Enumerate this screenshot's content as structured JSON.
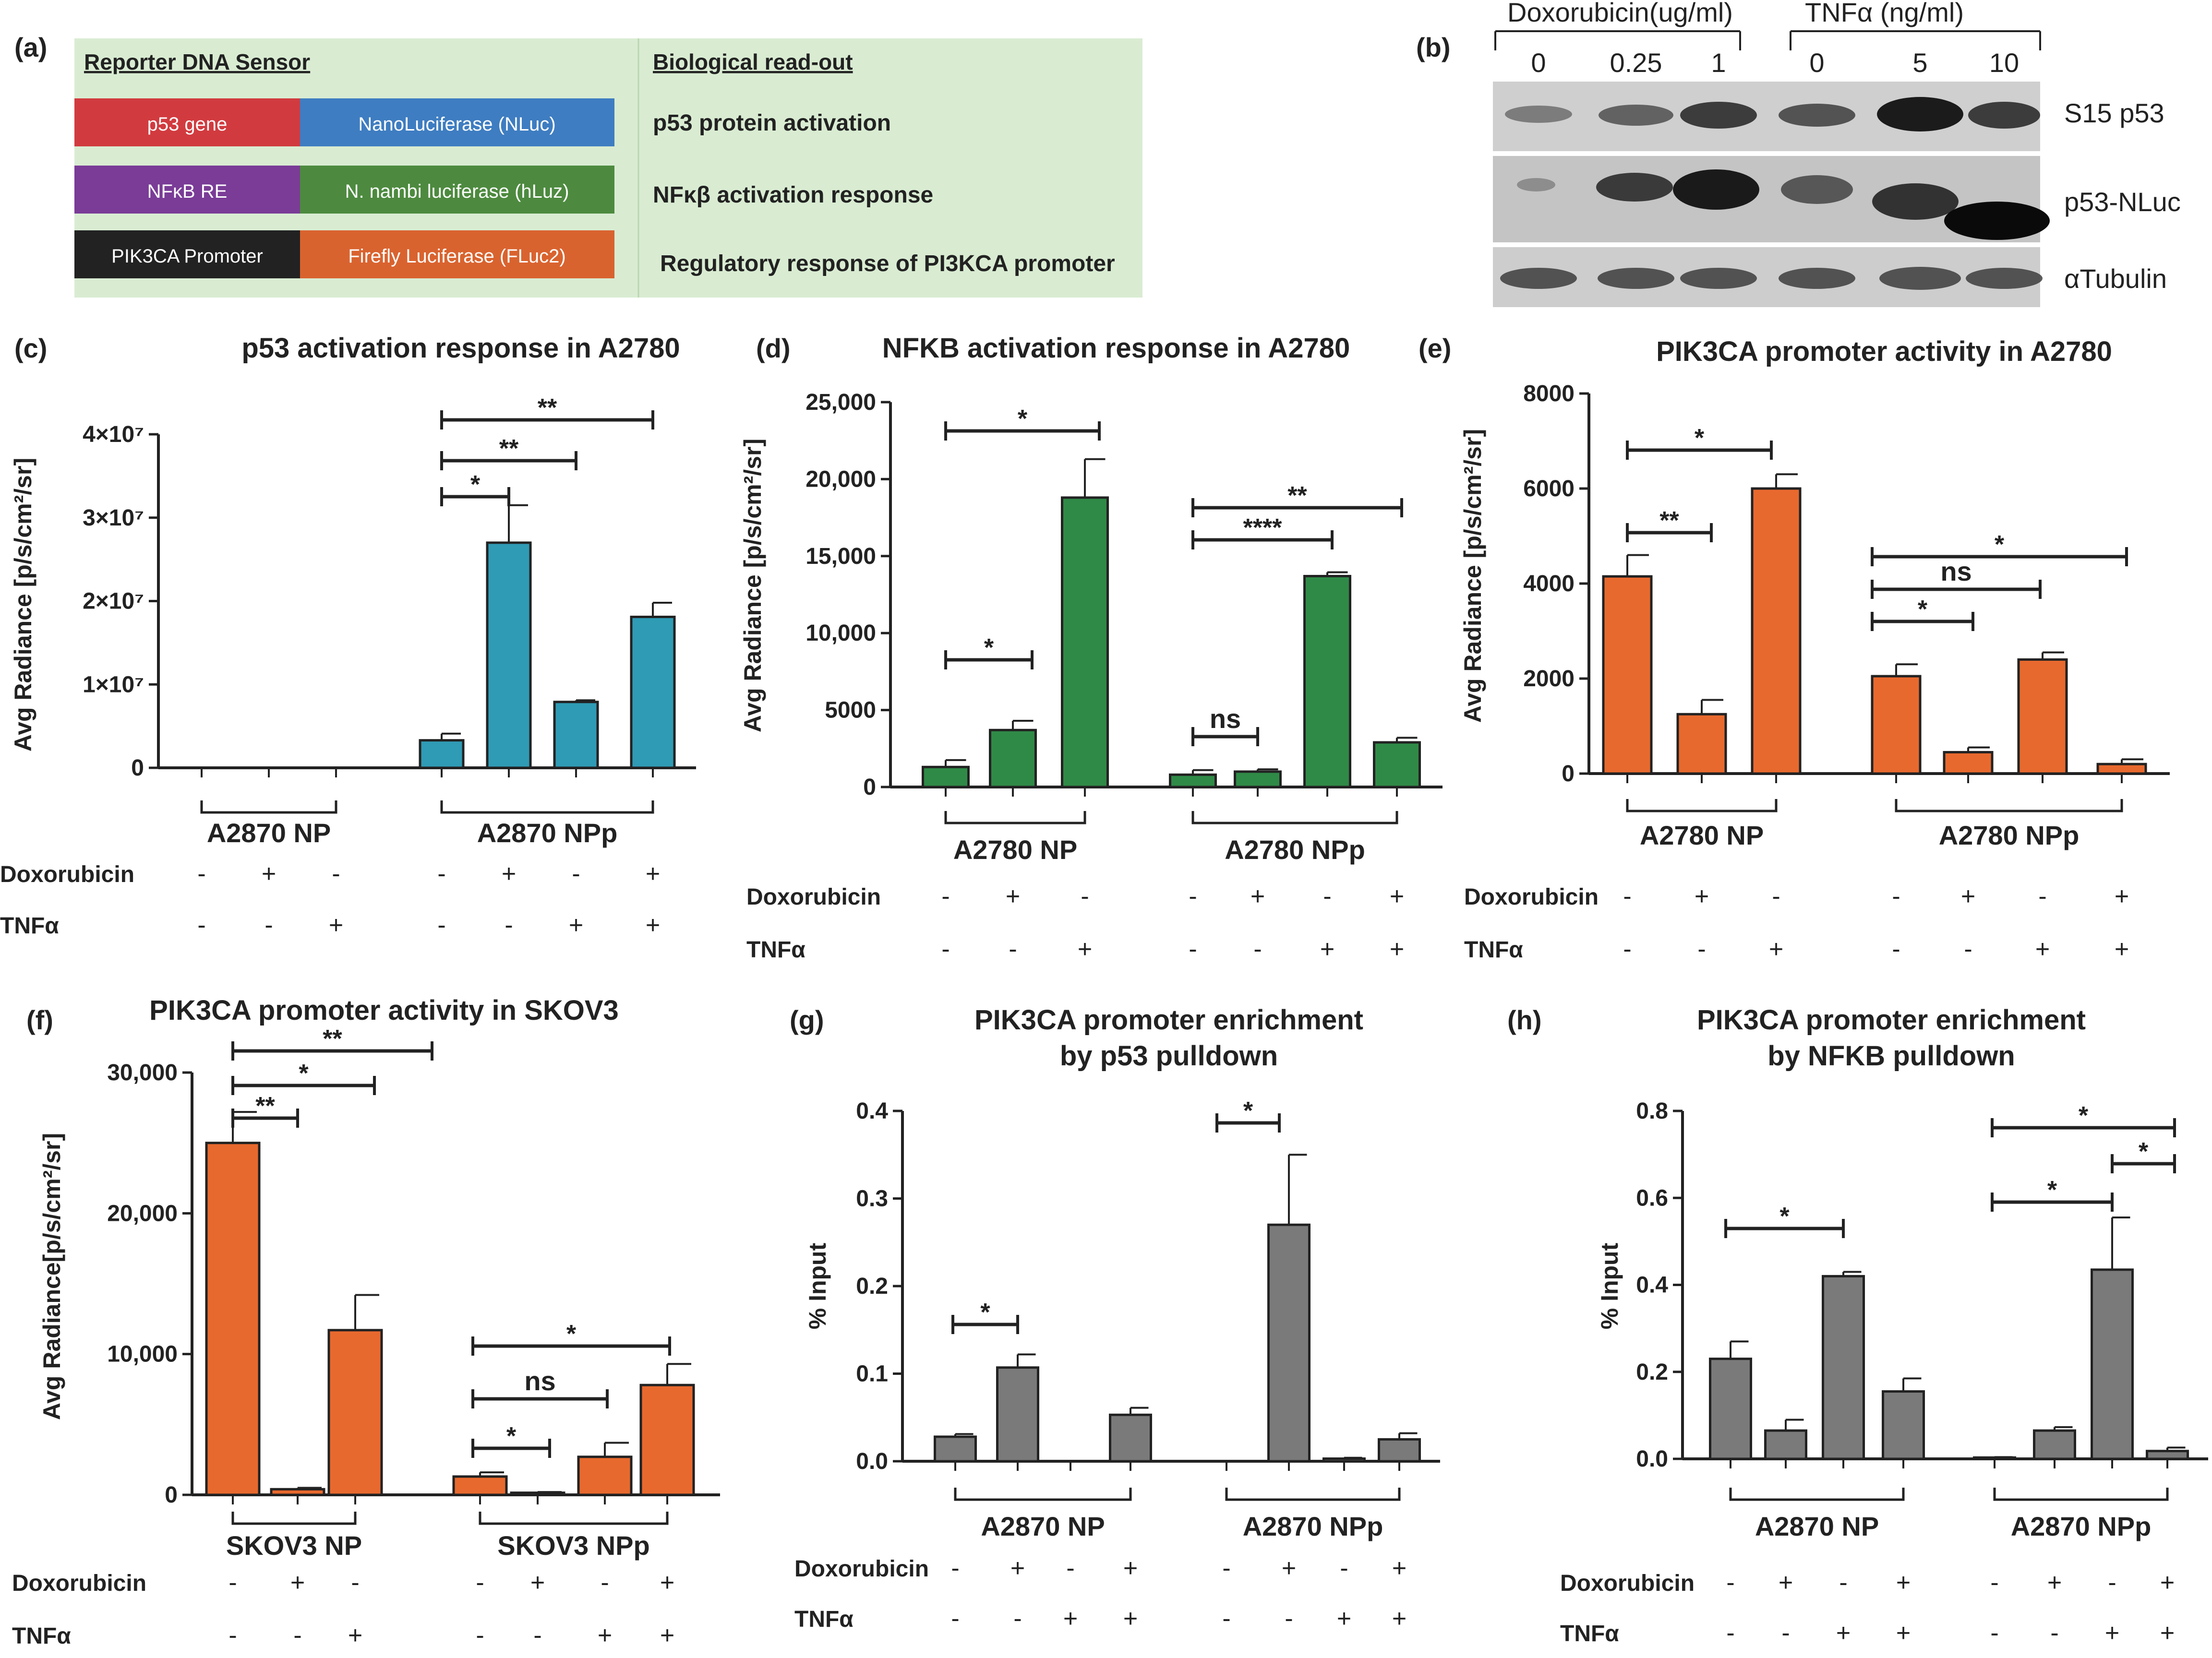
{
  "panel_labels": [
    "(a)",
    "(b)",
    "(c)",
    "(d)",
    "(e)",
    "(f)",
    "(g)",
    "(h)"
  ],
  "table": {
    "header_left": "Reporter DNA Sensor",
    "header_right": "Biological read-out",
    "rows": [
      {
        "left": "p53 gene",
        "right": "NanoLuciferase (NLuc)",
        "readout": "p53 protein activation",
        "left_color": "#d13b3f",
        "right_color": "#3e7dc1"
      },
      {
        "left": "NFκB RE",
        "right": "N. nambi luciferase (hLuz)",
        "readout": "NFκβ activation response",
        "left_color": "#7a3c97",
        "right_color": "#4d8a3f"
      },
      {
        "left": "PIK3CA Promoter",
        "right": "Firefly Luciferase (FLuc2)",
        "readout": "Regulatory response of PI3KCA promoter",
        "left_color": "#222222",
        "right_color": "#d9632f"
      }
    ],
    "background": "#d9ecd2"
  },
  "western": {
    "doxo_label": "Doxorubicin(ug/ml)",
    "tnf_label": "TNFα (ng/ml)",
    "lanes": [
      "0",
      "0.25",
      "1",
      "0",
      "5",
      "10"
    ],
    "bands": [
      "S15 p53",
      "p53-NLuc",
      "αTubulin"
    ]
  },
  "condition_labels": {
    "doxo": "Doxorubicin",
    "tnf": "TNFα"
  },
  "chart_data": [
    {
      "id": "c",
      "type": "bar",
      "title": "p53 activation response in A2780",
      "ylabel": "Avg Radiance [p/s/cm²/sr]",
      "yticks": [
        "0",
        "1×10⁷",
        "2×10⁷",
        "3×10⁷",
        "4×10⁷"
      ],
      "ylim": [
        0,
        40000000
      ],
      "groups": [
        "A2870 NP",
        "A2870 NPp"
      ],
      "color": "#2f9bb5",
      "values": [
        0,
        0,
        0,
        3300000,
        27000000,
        7900000,
        18100000
      ],
      "errors": [
        0,
        0,
        0,
        800000,
        4500000,
        200000,
        1700000
      ],
      "doxo": [
        "-",
        "+",
        "-",
        "-",
        "+",
        "-",
        "+"
      ],
      "tnf": [
        "-",
        "-",
        "+",
        "-",
        "-",
        "+",
        "+"
      ],
      "sig": [
        "*",
        "**",
        "**"
      ]
    },
    {
      "id": "d",
      "type": "bar",
      "title": "NFKB activation response in A2780",
      "ylabel": "Avg Radiance [p/s/cm²/sr]",
      "yticks": [
        "0",
        "5000",
        "10,000",
        "15,000",
        "20,000",
        "25,000"
      ],
      "ylim": [
        0,
        25000
      ],
      "groups": [
        "A2780 NP",
        "A2780 NPp"
      ],
      "color": "#2f8a47",
      "values": [
        1300,
        3700,
        18800,
        800,
        1000,
        13700,
        2900
      ],
      "errors": [
        450,
        600,
        2500,
        300,
        150,
        250,
        300
      ],
      "doxo": [
        "-",
        "+",
        "-",
        "-",
        "+",
        "-",
        "+"
      ],
      "tnf": [
        "-",
        "-",
        "+",
        "-",
        "-",
        "+",
        "+"
      ],
      "sig": [
        "*",
        "*",
        "ns",
        "****",
        "**"
      ]
    },
    {
      "id": "e",
      "type": "bar",
      "title": "PIK3CA promoter activity in A2780",
      "ylabel": "Avg Radiance [p/s/cm²/sr]",
      "yticks": [
        "0",
        "2000",
        "4000",
        "6000",
        "8000"
      ],
      "ylim": [
        0,
        8000
      ],
      "groups": [
        "A2780 NP",
        "A2780 NPp"
      ],
      "color": "#e8692e",
      "values": [
        4150,
        1250,
        6000,
        2050,
        450,
        2400,
        200
      ],
      "errors": [
        450,
        300,
        300,
        250,
        100,
        150,
        100
      ],
      "doxo": [
        "-",
        "+",
        "-",
        "-",
        "+",
        "-",
        "+"
      ],
      "tnf": [
        "-",
        "-",
        "+",
        "-",
        "-",
        "+",
        "+"
      ],
      "sig": [
        "**",
        "*",
        "*",
        "ns",
        "*"
      ]
    },
    {
      "id": "f",
      "type": "bar",
      "title": "PIK3CA promoter activity in SKOV3",
      "ylabel": "Avg Radiance[p/s/cm²/sr]",
      "yticks": [
        "0",
        "10,000",
        "20,000",
        "30,000"
      ],
      "ylim": [
        0,
        30000
      ],
      "groups": [
        "SKOV3 NP",
        "SKOV3 NPp"
      ],
      "color": "#e8692e",
      "values": [
        25000,
        400,
        11700,
        1300,
        150,
        2700,
        7800
      ],
      "errors": [
        2200,
        100,
        2500,
        300,
        50,
        1000,
        1500
      ],
      "doxo": [
        "-",
        "+",
        "-",
        "-",
        "+",
        "-",
        "+"
      ],
      "tnf": [
        "-",
        "-",
        "+",
        "-",
        "-",
        "+",
        "+"
      ],
      "sig": [
        "**",
        "*",
        "**",
        "*",
        "ns",
        "*"
      ]
    },
    {
      "id": "g",
      "type": "bar",
      "title": "PIK3CA promoter enrichment",
      "subtitle": "by p53 pulldown",
      "ylabel": "% Input",
      "yticks": [
        "0.0",
        "0.1",
        "0.2",
        "0.3",
        "0.4"
      ],
      "ylim": [
        0,
        0.4
      ],
      "groups": [
        "A2870 NP",
        "A2870 NPp"
      ],
      "color": "#7a7a7a",
      "values": [
        0.028,
        0.107,
        0,
        0.053,
        0,
        0.27,
        0.003,
        0.025
      ],
      "errors": [
        0.003,
        0.015,
        0,
        0.008,
        0,
        0.08,
        0.001,
        0.007
      ],
      "doxo": [
        "-",
        "+",
        "-",
        "+",
        "-",
        "+",
        "-",
        "+"
      ],
      "tnf": [
        "-",
        "-",
        "+",
        "+",
        "-",
        "-",
        "+",
        "+"
      ],
      "sig": [
        "*",
        "*"
      ]
    },
    {
      "id": "h",
      "type": "bar",
      "title": "PIK3CA promoter enrichment",
      "subtitle": "by NFKB pulldown",
      "ylabel": "% Input",
      "yticks": [
        "0.0",
        "0.2",
        "0.4",
        "0.6",
        "0.8"
      ],
      "ylim": [
        0,
        0.8
      ],
      "groups": [
        "A2870 NP",
        "A2870 NPp"
      ],
      "color": "#7a7a7a",
      "values": [
        0.23,
        0.065,
        0.42,
        0.155,
        0.003,
        0.065,
        0.435,
        0.018
      ],
      "errors": [
        0.04,
        0.025,
        0.01,
        0.03,
        0.001,
        0.008,
        0.12,
        0.008
      ],
      "doxo": [
        "-",
        "+",
        "-",
        "+",
        "-",
        "+",
        "-",
        "+"
      ],
      "tnf": [
        "-",
        "-",
        "+",
        "+",
        "-",
        "-",
        "+",
        "+"
      ],
      "sig": [
        "*",
        "*",
        "*",
        "*"
      ]
    }
  ]
}
